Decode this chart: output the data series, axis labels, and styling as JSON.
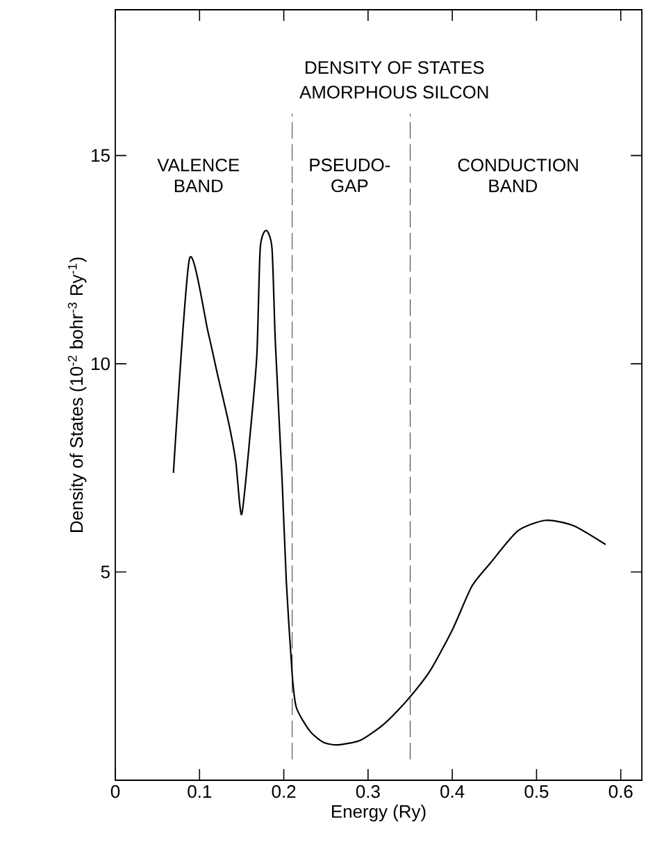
{
  "chart_data": {
    "type": "line",
    "title": "DENSITY OF STATES",
    "subtitle": "AMORPHOUS SILCON",
    "xlabel": "Energy (Ry)",
    "ylabel": "Density of States  (10$^{-2}$ bohr$^{-3}$ Ry$^{-1}$)",
    "xlim": [
      0,
      0.625
    ],
    "ylim": [
      0,
      18.5
    ],
    "xticks": [
      0,
      0.1,
      0.2,
      0.3,
      0.4,
      0.5,
      0.6
    ],
    "yticks": [
      5,
      10,
      15
    ],
    "grid": false,
    "marker": "none",
    "line_style": "solid",
    "ref_lines": [
      {
        "axis": "x",
        "value": 0.21,
        "line_style": "dashed"
      },
      {
        "axis": "x",
        "value": 0.35,
        "line_style": "dashed"
      }
    ],
    "annotations": [
      "VALENCE BAND",
      "PSEUDO-GAP",
      "CONDUCTION BAND"
    ],
    "series": [
      {
        "color": "#000000",
        "x": [
          0.069,
          0.088,
          0.11,
          0.121,
          0.135,
          0.143,
          0.15,
          0.16,
          0.168,
          0.172,
          0.179,
          0.186,
          0.19,
          0.198,
          0.203,
          0.21,
          0.215,
          0.231,
          0.247,
          0.264,
          0.291,
          0.319,
          0.346,
          0.374,
          0.401,
          0.423,
          0.445,
          0.478,
          0.511,
          0.544,
          0.582
        ],
        "values": [
          7.38,
          12.52,
          10.77,
          9.77,
          8.54,
          7.65,
          6.38,
          8.3,
          10.2,
          12.77,
          13.2,
          12.77,
          10.5,
          7.2,
          4.77,
          2.53,
          1.74,
          1.18,
          0.91,
          0.85,
          0.96,
          1.35,
          1.91,
          2.64,
          3.65,
          4.65,
          5.21,
          5.99,
          6.24,
          6.11,
          5.66
        ]
      }
    ]
  }
}
